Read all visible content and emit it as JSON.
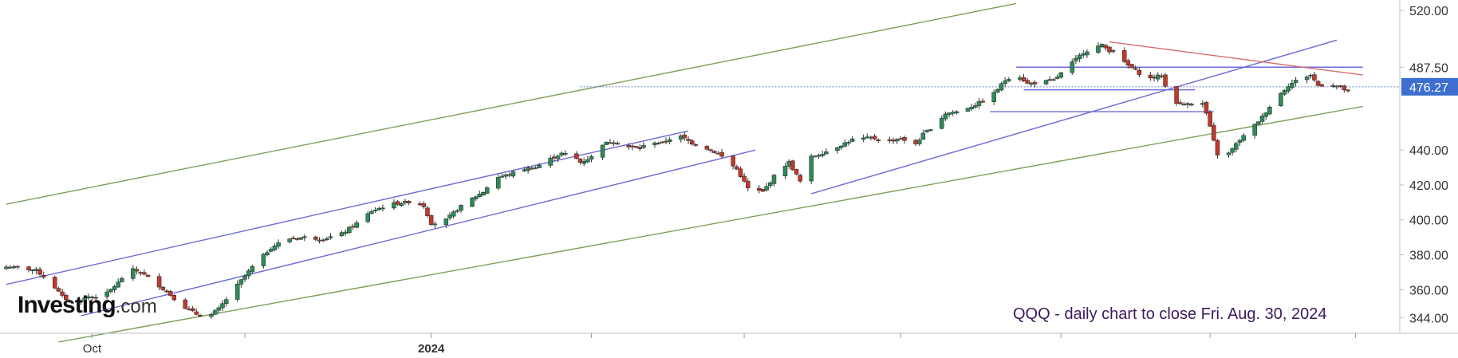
{
  "chart_data": {
    "type": "candlestick",
    "title": "QQQ - daily chart to close Fri. Aug. 30, 2024",
    "brand": {
      "name": "Investing",
      "suffix": ".com"
    },
    "ylim": [
      335,
      526
    ],
    "y_ticks": [
      344,
      360,
      380,
      400,
      420,
      440,
      487.5,
      520
    ],
    "y_tick_labels": [
      "344.00",
      "360.00",
      "380.00",
      "400.00",
      "420.00",
      "440.00",
      "487.50",
      "520.00"
    ],
    "last_price": 476.27,
    "last_price_label": "476.27",
    "x_labels": [
      {
        "label": "Oct",
        "day": 23,
        "bold": false
      },
      {
        "label": "2024",
        "day": 114,
        "bold": true
      }
    ],
    "x_tick_days": [
      23,
      64,
      114,
      157,
      198,
      240,
      283,
      323,
      362,
      403,
      444,
      485
    ],
    "first_date": "2023-09-05",
    "last_date": "2024-08-30",
    "anchors": [
      [
        0,
        373
      ],
      [
        5,
        372
      ],
      [
        8,
        371
      ],
      [
        12,
        364
      ],
      [
        15,
        356
      ],
      [
        18,
        352
      ],
      [
        22,
        356
      ],
      [
        26,
        356
      ],
      [
        30,
        364
      ],
      [
        33,
        372
      ],
      [
        36,
        370
      ],
      [
        40,
        364
      ],
      [
        44,
        357
      ],
      [
        47,
        351
      ],
      [
        51,
        346
      ],
      [
        54,
        344
      ],
      [
        57,
        349
      ],
      [
        61,
        360
      ],
      [
        66,
        373
      ],
      [
        71,
        384
      ],
      [
        75,
        389
      ],
      [
        80,
        390
      ],
      [
        85,
        389
      ],
      [
        90,
        392
      ],
      [
        94,
        398
      ],
      [
        98,
        405
      ],
      [
        103,
        409
      ],
      [
        107,
        410
      ],
      [
        110,
        411
      ],
      [
        112,
        408
      ],
      [
        114,
        398
      ],
      [
        117,
        398
      ],
      [
        121,
        406
      ],
      [
        124,
        411
      ],
      [
        128,
        416
      ],
      [
        131,
        424
      ],
      [
        135,
        426
      ],
      [
        138,
        429
      ],
      [
        142,
        430
      ],
      [
        145,
        434
      ],
      [
        149,
        438
      ],
      [
        152,
        437
      ],
      [
        154,
        433
      ],
      [
        157,
        436
      ],
      [
        159,
        443
      ],
      [
        163,
        445
      ],
      [
        166,
        442
      ],
      [
        170,
        441
      ],
      [
        173,
        445
      ],
      [
        176,
        444
      ],
      [
        180,
        449
      ],
      [
        184,
        444
      ],
      [
        188,
        441
      ],
      [
        191,
        438
      ],
      [
        196,
        429
      ],
      [
        199,
        418
      ],
      [
        203,
        416
      ],
      [
        207,
        428
      ],
      [
        210,
        433
      ],
      [
        213,
        422
      ],
      [
        216,
        436
      ],
      [
        221,
        440
      ],
      [
        227,
        446
      ],
      [
        232,
        447
      ],
      [
        237,
        445
      ],
      [
        240,
        447
      ],
      [
        243,
        441
      ],
      [
        246,
        449
      ],
      [
        250,
        456
      ],
      [
        252,
        461
      ],
      [
        255,
        462
      ],
      [
        259,
        465
      ],
      [
        264,
        470
      ],
      [
        268,
        480
      ],
      [
        271,
        484
      ],
      [
        274,
        478
      ],
      [
        278,
        479
      ],
      [
        281,
        480
      ],
      [
        285,
        488
      ],
      [
        289,
        496
      ],
      [
        292,
        499
      ],
      [
        294,
        500
      ],
      [
        296,
        497
      ],
      [
        298,
        498
      ],
      [
        300,
        490
      ],
      [
        304,
        484
      ],
      [
        307,
        481
      ],
      [
        310,
        483
      ],
      [
        312,
        470
      ],
      [
        315,
        466
      ],
      [
        318,
        467
      ],
      [
        320,
        472
      ],
      [
        322,
        461
      ],
      [
        324,
        445
      ],
      [
        326,
        430
      ],
      [
        328,
        438
      ],
      [
        331,
        446
      ],
      [
        334,
        452
      ],
      [
        337,
        459
      ],
      [
        340,
        468
      ],
      [
        344,
        477
      ],
      [
        347,
        481
      ],
      [
        350,
        483
      ],
      [
        352,
        477
      ],
      [
        355,
        478
      ],
      [
        358,
        476
      ],
      [
        361,
        472
      ],
      [
        364,
        476
      ]
    ],
    "trendlines": [
      {
        "name": "outer-channel-top",
        "color": "#7ba05b",
        "points": [
          [
            0,
            409
          ],
          [
            271,
            524
          ]
        ]
      },
      {
        "name": "outer-channel-bottom",
        "color": "#7ba05b",
        "points": [
          [
            14,
            330
          ],
          [
            364,
            465
          ]
        ]
      },
      {
        "name": "channel-top",
        "color": "#6b6bd8",
        "points": [
          [
            0,
            363
          ],
          [
            183,
            451
          ]
        ]
      },
      {
        "name": "channel-bottom",
        "color": "#6b6bd8",
        "points": [
          [
            20,
            345
          ],
          [
            201,
            440
          ]
        ]
      },
      {
        "name": "long-support",
        "color": "#6b6bd8",
        "points": [
          [
            216,
            415
          ],
          [
            357,
            503
          ]
        ]
      },
      {
        "name": "resistance-487",
        "color": "#6b6bd8",
        "points": [
          [
            271,
            487.5
          ],
          [
            364,
            487.5
          ]
        ]
      },
      {
        "name": "support-476",
        "color": "#6b6bd8",
        "points": [
          [
            273,
            474.5
          ],
          [
            319,
            474.5
          ]
        ]
      },
      {
        "name": "support-462",
        "color": "#6b6bd8",
        "points": [
          [
            264,
            462
          ],
          [
            324,
            462
          ]
        ]
      },
      {
        "name": "descending-red",
        "color": "#d96a6a",
        "points": [
          [
            296,
            502
          ],
          [
            364,
            483
          ]
        ]
      }
    ],
    "price_line": {
      "color": "#5b7fcf",
      "value": 476.27,
      "from_day": 154
    },
    "colors": {
      "up": "#2e8b57",
      "down": "#c0392b",
      "wick": "#333333",
      "price_tag": "#3d6fd1"
    },
    "grid": false,
    "legend": "none"
  }
}
